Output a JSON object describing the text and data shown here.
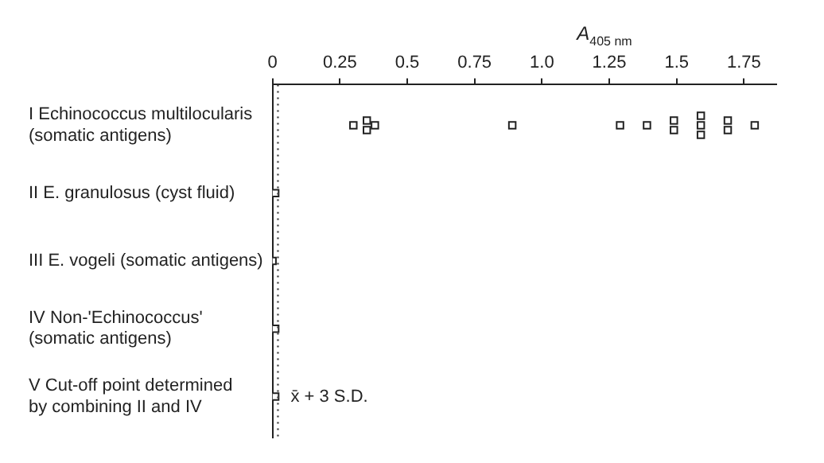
{
  "chart_data": {
    "type": "scatter",
    "orientation": "horizontal",
    "xlabel": "A$_{405 nm}$",
    "categories": [
      "I Echinococcus multilocularis\n(somatic antigens)",
      "II E. granulosus (cyst fluid)",
      "III E. vogeli (somatic antigens)",
      "IV Non-'Echinococcus'\n(somatic antigens)",
      "V Cut-off point determined\nby combining II and IV"
    ],
    "series": [
      {
        "color": "#222222",
        "x": [
          "I Echinococcus multilocularis\n(somatic antigens)",
          "I Echinococcus multilocularis\n(somatic antigens)",
          "I Echinococcus multilocularis\n(somatic antigens)",
          "I Echinococcus multilocularis\n(somatic antigens)",
          "I Echinococcus multilocularis\n(somatic antigens)",
          "I Echinococcus multilocularis\n(somatic antigens)",
          "I Echinococcus multilocularis\n(somatic antigens)",
          "I Echinococcus multilocularis\n(somatic antigens)",
          "I Echinococcus multilocularis\n(somatic antigens)",
          "I Echinococcus multilocularis\n(somatic antigens)",
          "I Echinococcus multilocularis\n(somatic antigens)",
          "I Echinococcus multilocularis\n(somatic antigens)",
          "I Echinococcus multilocularis\n(somatic antigens)",
          "I Echinococcus multilocularis\n(somatic antigens)",
          "I Echinococcus multilocularis\n(somatic antigens)",
          "II E. granulosus (cyst fluid)",
          "III E. vogeli (somatic antigens)",
          "IV Non-'Echinococcus'\n(somatic antigens)",
          "V Cut-off point determined\nby combining II and IV"
        ],
        "values": [
          0.3,
          0.35,
          0.35,
          0.38,
          0.89,
          1.29,
          1.39,
          1.49,
          1.49,
          1.59,
          1.59,
          1.59,
          1.69,
          1.69,
          1.79,
          0.01,
          0,
          0.01,
          0.01
        ]
      }
    ],
    "marker": "square",
    "xlim": [
      0,
      1.87
    ],
    "xticks": [
      0,
      0.25,
      0.5,
      0.75,
      {
        "value": 1,
        "label": "1.0"
      },
      1.25,
      1.5,
      1.75
    ],
    "ref_lines": [
      {
        "axis": "x",
        "value": 0.02,
        "line_style": "dotted",
        "color": "#444444"
      }
    ],
    "annotations": [
      {
        "text": "x̄ + 3 S.D.",
        "x": 0.02,
        "y": "V Cut-off point determined\nby combining II and IV"
      }
    ],
    "grid": false,
    "legend": false
  }
}
